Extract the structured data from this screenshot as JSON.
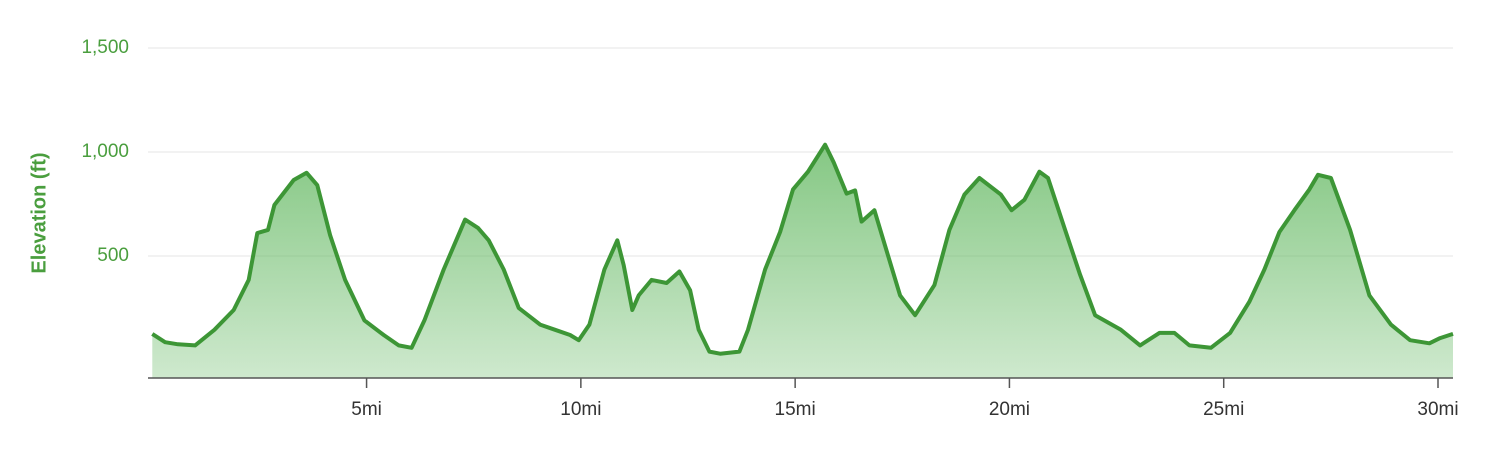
{
  "chart_data": {
    "type": "area",
    "y_axis_title": "Elevation (ft)",
    "color": "#3d9636",
    "fill_color": "#5cb55a",
    "grid": true,
    "xlim": [
      -0.1,
      30.35
    ],
    "ylim": [
      -87,
      1500
    ],
    "xticks": [
      {
        "value": 5,
        "label": "5mi"
      },
      {
        "value": 10,
        "label": "10mi"
      },
      {
        "value": 15,
        "label": "15mi"
      },
      {
        "value": 20,
        "label": "20mi"
      },
      {
        "value": 25,
        "label": "25mi"
      },
      {
        "value": 30,
        "label": "30mi"
      }
    ],
    "yticks": [
      500,
      {
        "value": 1000,
        "label": "1,000"
      },
      {
        "value": 1500,
        "label": "1,500"
      }
    ],
    "x": [
      0,
      0.3,
      0.6,
      1.0,
      1.45,
      1.9,
      2.25,
      2.45,
      2.7,
      2.85,
      3.3,
      3.6,
      3.85,
      4.15,
      4.5,
      4.95,
      5.4,
      5.75,
      6.05,
      6.35,
      6.8,
      7.3,
      7.6,
      7.85,
      8.2,
      8.55,
      9.05,
      9.4,
      9.75,
      9.95,
      10.2,
      10.55,
      10.85,
      11.0,
      11.2,
      11.35,
      11.65,
      12.0,
      12.3,
      12.55,
      12.75,
      13.0,
      13.25,
      13.7,
      13.9,
      14.3,
      14.65,
      14.95,
      15.3,
      15.7,
      15.9,
      16.2,
      16.4,
      16.55,
      16.85,
      17.2,
      17.45,
      17.8,
      18.25,
      18.6,
      18.95,
      19.3,
      19.8,
      20.05,
      20.35,
      20.7,
      20.9,
      21.3,
      21.65,
      22.0,
      22.6,
      23.05,
      23.5,
      23.85,
      24.2,
      24.7,
      25.15,
      25.6,
      25.95,
      26.3,
      26.65,
      27.0,
      27.2,
      27.5,
      27.95,
      28.4,
      28.9,
      29.35,
      29.8,
      30.05,
      30.35
    ],
    "values": [
      125,
      85,
      75,
      70,
      145,
      240,
      385,
      610,
      625,
      745,
      865,
      900,
      840,
      600,
      385,
      190,
      120,
      70,
      58,
      190,
      435,
      675,
      635,
      575,
      435,
      250,
      170,
      145,
      120,
      95,
      170,
      435,
      575,
      455,
      240,
      310,
      385,
      370,
      425,
      335,
      145,
      40,
      30,
      40,
      145,
      435,
      615,
      820,
      905,
      1035,
      950,
      800,
      815,
      665,
      720,
      480,
      310,
      215,
      360,
      625,
      795,
      875,
      795,
      720,
      770,
      905,
      875,
      625,
      410,
      215,
      145,
      70,
      130,
      130,
      70,
      58,
      130,
      280,
      435,
      615,
      720,
      820,
      890,
      875,
      625,
      310,
      170,
      95,
      80,
      105,
      125
    ]
  }
}
